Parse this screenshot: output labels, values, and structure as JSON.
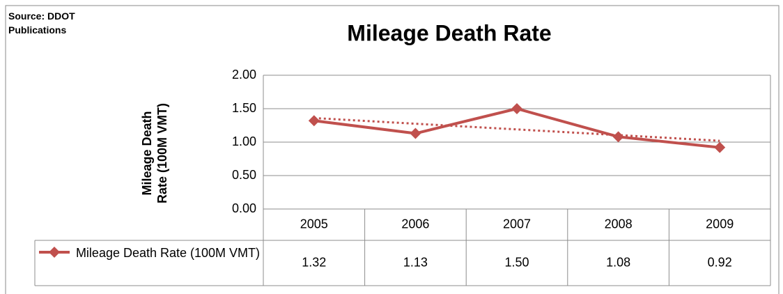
{
  "chart_data": {
    "type": "line",
    "title": "Mileage Death Rate",
    "source": "Source: DDOT Publications",
    "y_label": "Mileage Death Rate (100M VMT)",
    "categories": [
      "2005",
      "2006",
      "2007",
      "2008",
      "2009"
    ],
    "series": [
      {
        "name": "Mileage Death Rate (100M VMT)",
        "color": "#c0504d",
        "values": [
          1.32,
          1.13,
          1.5,
          1.08,
          0.92
        ],
        "value_labels": [
          "1.32",
          "1.13",
          "1.50",
          "1.08",
          "0.92"
        ]
      }
    ],
    "ylim": [
      0,
      2
    ],
    "yticks": [
      {
        "value": 0,
        "label": "0.00"
      },
      {
        "value": 0.5,
        "label": "0.50"
      },
      {
        "value": 1,
        "label": "1.00"
      },
      {
        "value": 1.5,
        "label": "1.50"
      },
      {
        "value": 2,
        "label": "2.00"
      }
    ],
    "grid": true,
    "trendline": "linear",
    "data_table": true
  }
}
